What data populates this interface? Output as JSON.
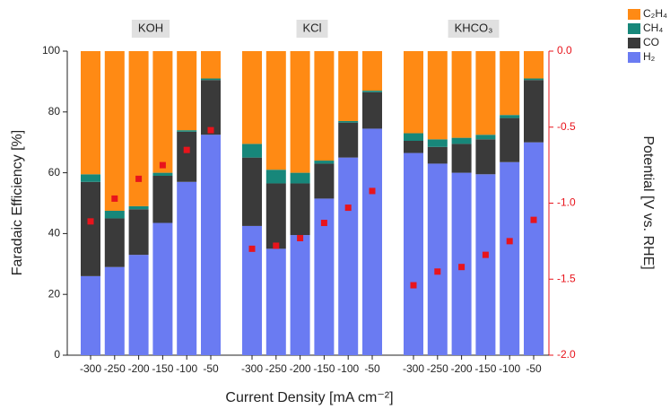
{
  "chart_data": {
    "type": "bar",
    "stacked": true,
    "x_label": "Current Density  [mA cm⁻²]",
    "y_label": "Faradaic Efficiency [%]",
    "y2_label": "Potential  [V vs. RHE]",
    "categories": [
      "-300",
      "-250",
      "-200",
      "-150",
      "-100",
      "-50"
    ],
    "ylim": [
      0,
      100
    ],
    "yticks": [
      0,
      20,
      40,
      60,
      80,
      100
    ],
    "y2lim": [
      -2.0,
      0.0
    ],
    "y2ticks": [
      {
        "value": 0,
        "label": "0.0"
      },
      -0.5,
      {
        "value": -1,
        "label": "-1.0"
      },
      -1.5,
      {
        "value": -2,
        "label": "-2.0"
      }
    ],
    "series": [
      {
        "name": "H₂",
        "color": "#6a7bf2"
      },
      {
        "name": "CO",
        "color": "#3a3a3a"
      },
      {
        "name": "CH₄",
        "color": "#17877a"
      },
      {
        "name": "C₂H₄",
        "color": "#ff8a14"
      }
    ],
    "potential_color": "#e8141c",
    "panels": [
      {
        "title": "KOH",
        "values": [
          [
            26,
            29,
            33,
            43.5,
            57,
            72.5
          ],
          [
            31,
            16,
            15,
            15.5,
            16.5,
            18
          ],
          [
            2.5,
            2.5,
            1,
            1,
            0.5,
            0.5
          ],
          [
            40.5,
            52.5,
            51,
            40,
            26,
            9
          ]
        ],
        "potential": [
          -1.12,
          -0.97,
          -0.84,
          -0.75,
          -0.65,
          -0.52
        ]
      },
      {
        "title": "KCl",
        "values": [
          [
            42.5,
            35,
            39.5,
            51.5,
            65,
            74.5
          ],
          [
            22.5,
            21.5,
            17,
            11.5,
            11.5,
            12
          ],
          [
            4.5,
            4.5,
            3.5,
            1,
            0.5,
            0.5
          ],
          [
            30.5,
            39,
            40,
            36,
            23,
            13
          ]
        ],
        "potential": [
          -1.3,
          -1.28,
          -1.23,
          -1.13,
          -1.03,
          -0.92
        ]
      },
      {
        "title": "KHCO₃",
        "values": [
          [
            66.5,
            63,
            60,
            59.5,
            63.5,
            70
          ],
          [
            4,
            5.5,
            9.5,
            11.5,
            14.5,
            20.5
          ],
          [
            2.5,
            2.5,
            2,
            1.5,
            1,
            0.5
          ],
          [
            27,
            29,
            28.5,
            27.5,
            21,
            9
          ]
        ],
        "potential": [
          -1.54,
          -1.45,
          -1.42,
          -1.34,
          -1.25,
          -1.11
        ]
      }
    ]
  }
}
